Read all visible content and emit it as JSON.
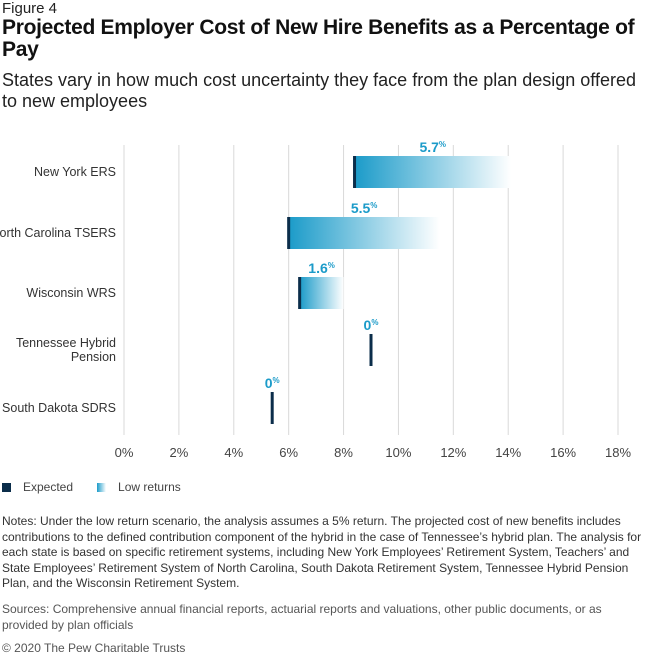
{
  "figure_label": "Figure 4",
  "title": "Projected Employer Cost of New Hire Benefits as a Percentage of Pay",
  "subtitle": "States vary in how much cost uncertainty they face from the plan design offered to new employees",
  "chart_data": {
    "type": "bar",
    "orientation": "horizontal-range",
    "categories": [
      "New York ERS",
      "North Carolina TSERS",
      "Wisconsin WRS",
      "Tennessee Hybrid Pension",
      "South Dakota SDRS"
    ],
    "series": [
      {
        "name": "Expected",
        "values": [
          8.4,
          6.0,
          6.4,
          9.0,
          5.4
        ]
      },
      {
        "name": "Low returns",
        "values": [
          14.1,
          11.5,
          8.0,
          9.0,
          5.4
        ]
      }
    ],
    "data_labels": [
      "5.7%",
      "5.5%",
      "1.6%",
      "0%",
      "0%"
    ],
    "x_ticks": [
      "0%",
      "2%",
      "4%",
      "6%",
      "8%",
      "10%",
      "12%",
      "14%",
      "16%",
      "18%"
    ],
    "xlim": [
      0,
      18
    ],
    "grid": true,
    "legend": "bottom-left",
    "colors": {
      "expected": "#0b2d4a",
      "low_returns_start": "#1b9bc9",
      "low_returns_end": "#ffffff",
      "label": "#1b9bc9",
      "grid": "#d9d9d9"
    }
  },
  "legend": {
    "expected": "Expected",
    "low_returns": "Low returns"
  },
  "notes": "Notes: Under the low return scenario, the analysis assumes a 5% return. The projected cost of new benefits includes contributions to the defined contribution component of the hybrid in the case of Tennessee’s hybrid plan. The analysis for each state is based on specific retirement systems, including New York Employees’ Retirement System, Teachers’ and State Employees’ Retirement System of North Carolina, South Dakota Retirement System, Tennessee Hybrid Pension Plan, and the Wisconsin Retirement System.",
  "sources": "Sources: Comprehensive annual financial reports, actuarial reports and valuations, other public documents, or as provided by plan officials",
  "copyright": "© 2020 The Pew Charitable Trusts"
}
